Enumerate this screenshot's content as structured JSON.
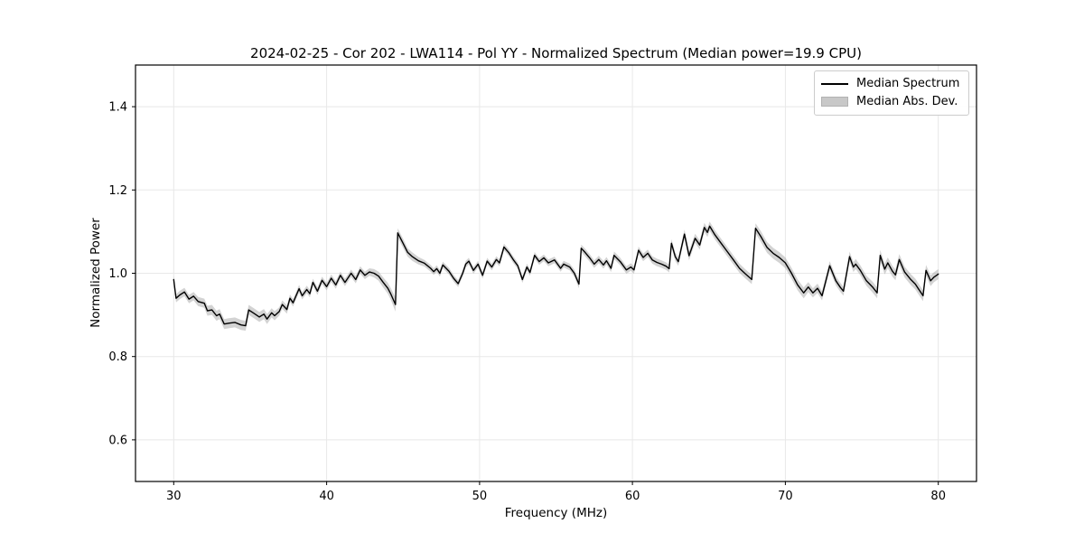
{
  "chart_data": {
    "type": "line",
    "title": "2024-02-25 - Cor 202 - LWA114 - Pol YY - Normalized Spectrum (Median power=19.9 CPU)",
    "xlabel": "Frequency (MHz)",
    "ylabel": "Normalized Power",
    "xlim": [
      27.5,
      82.5
    ],
    "ylim": [
      0.5,
      1.5
    ],
    "grid": true,
    "xticks": [
      {
        "value": 30,
        "label": "30"
      },
      {
        "value": 40,
        "label": "40"
      },
      {
        "value": 50,
        "label": "50"
      },
      {
        "value": 60,
        "label": "60"
      },
      {
        "value": 70,
        "label": "70"
      },
      {
        "value": 80,
        "label": "80"
      }
    ],
    "yticks": [
      {
        "value": 0.6,
        "label": "0.6"
      },
      {
        "value": 0.8,
        "label": "0.8"
      },
      {
        "value": 1.0,
        "label": "1.0"
      },
      {
        "value": 1.2,
        "label": "1.2"
      },
      {
        "value": 1.4,
        "label": "1.4"
      }
    ],
    "legend": {
      "position": "upper right",
      "entries": [
        "Median Spectrum",
        "Median Abs. Dev."
      ]
    },
    "colors": {
      "line": "#000000",
      "band": "#9e9e9e",
      "band_opacity": 0.45,
      "grid": "#e8e8e8",
      "frame": "#000000"
    },
    "series": [
      {
        "name": "Median Spectrum",
        "points_format": [
          "freq_mhz",
          "normalized_power",
          "median_abs_dev"
        ],
        "points": [
          [
            30.0,
            0.985,
            0.01
          ],
          [
            30.15,
            0.94,
            0.01
          ],
          [
            30.4,
            0.948,
            0.01
          ],
          [
            30.7,
            0.955,
            0.01
          ],
          [
            31.0,
            0.938,
            0.01
          ],
          [
            31.3,
            0.945,
            0.01
          ],
          [
            31.6,
            0.932,
            0.011
          ],
          [
            32.0,
            0.928,
            0.011
          ],
          [
            32.2,
            0.91,
            0.012
          ],
          [
            32.5,
            0.912,
            0.012
          ],
          [
            32.8,
            0.898,
            0.012
          ],
          [
            33.0,
            0.902,
            0.012
          ],
          [
            33.3,
            0.878,
            0.012
          ],
          [
            33.6,
            0.88,
            0.012
          ],
          [
            34.0,
            0.882,
            0.012
          ],
          [
            34.4,
            0.876,
            0.012
          ],
          [
            34.7,
            0.874,
            0.012
          ],
          [
            34.9,
            0.912,
            0.012
          ],
          [
            35.2,
            0.905,
            0.012
          ],
          [
            35.6,
            0.895,
            0.012
          ],
          [
            35.9,
            0.902,
            0.012
          ],
          [
            36.1,
            0.89,
            0.012
          ],
          [
            36.4,
            0.905,
            0.011
          ],
          [
            36.6,
            0.898,
            0.011
          ],
          [
            36.9,
            0.908,
            0.01
          ],
          [
            37.1,
            0.925,
            0.01
          ],
          [
            37.4,
            0.913,
            0.01
          ],
          [
            37.6,
            0.94,
            0.009
          ],
          [
            37.8,
            0.929,
            0.009
          ],
          [
            38.2,
            0.963,
            0.009
          ],
          [
            38.4,
            0.946,
            0.009
          ],
          [
            38.7,
            0.961,
            0.009
          ],
          [
            38.9,
            0.951,
            0.009
          ],
          [
            39.1,
            0.978,
            0.009
          ],
          [
            39.4,
            0.957,
            0.009
          ],
          [
            39.7,
            0.983,
            0.009
          ],
          [
            40.0,
            0.968,
            0.009
          ],
          [
            40.3,
            0.988,
            0.009
          ],
          [
            40.6,
            0.972,
            0.009
          ],
          [
            40.9,
            0.995,
            0.009
          ],
          [
            41.2,
            0.978,
            0.009
          ],
          [
            41.6,
            1.0,
            0.009
          ],
          [
            41.9,
            0.985,
            0.009
          ],
          [
            42.2,
            1.008,
            0.009
          ],
          [
            42.5,
            0.995,
            0.009
          ],
          [
            42.8,
            1.003,
            0.009
          ],
          [
            43.1,
            1.0,
            0.01
          ],
          [
            43.4,
            0.993,
            0.011
          ],
          [
            43.7,
            0.978,
            0.012
          ],
          [
            44.0,
            0.964,
            0.013
          ],
          [
            44.2,
            0.95,
            0.014
          ],
          [
            44.5,
            0.925,
            0.017
          ],
          [
            44.65,
            1.097,
            0.011
          ],
          [
            45.0,
            1.072,
            0.011
          ],
          [
            45.3,
            1.05,
            0.01
          ],
          [
            45.6,
            1.04,
            0.01
          ],
          [
            46.0,
            1.03,
            0.009
          ],
          [
            46.4,
            1.024,
            0.008
          ],
          [
            46.8,
            1.012,
            0.008
          ],
          [
            47.0,
            1.004,
            0.008
          ],
          [
            47.2,
            1.011,
            0.008
          ],
          [
            47.4,
            1.0,
            0.008
          ],
          [
            47.6,
            1.02,
            0.008
          ],
          [
            48.0,
            1.005,
            0.008
          ],
          [
            48.3,
            0.988,
            0.008
          ],
          [
            48.6,
            0.975,
            0.008
          ],
          [
            48.9,
            1.0,
            0.008
          ],
          [
            49.1,
            1.022,
            0.008
          ],
          [
            49.3,
            1.029,
            0.008
          ],
          [
            49.6,
            1.007,
            0.008
          ],
          [
            49.9,
            1.022,
            0.008
          ],
          [
            50.2,
            0.995,
            0.008
          ],
          [
            50.5,
            1.029,
            0.008
          ],
          [
            50.8,
            1.015,
            0.008
          ],
          [
            51.1,
            1.033,
            0.008
          ],
          [
            51.3,
            1.025,
            0.008
          ],
          [
            51.6,
            1.063,
            0.008
          ],
          [
            51.9,
            1.05,
            0.008
          ],
          [
            52.2,
            1.033,
            0.008
          ],
          [
            52.5,
            1.018,
            0.008
          ],
          [
            52.8,
            0.985,
            0.008
          ],
          [
            53.1,
            1.015,
            0.008
          ],
          [
            53.3,
            1.002,
            0.008
          ],
          [
            53.6,
            1.043,
            0.008
          ],
          [
            53.9,
            1.028,
            0.008
          ],
          [
            54.2,
            1.037,
            0.008
          ],
          [
            54.5,
            1.025,
            0.008
          ],
          [
            54.9,
            1.032,
            0.008
          ],
          [
            55.3,
            1.012,
            0.008
          ],
          [
            55.5,
            1.022,
            0.008
          ],
          [
            55.9,
            1.015,
            0.008
          ],
          [
            56.2,
            1.0,
            0.009
          ],
          [
            56.5,
            0.974,
            0.01
          ],
          [
            56.65,
            1.06,
            0.009
          ],
          [
            56.9,
            1.05,
            0.009
          ],
          [
            57.2,
            1.037,
            0.009
          ],
          [
            57.5,
            1.022,
            0.009
          ],
          [
            57.8,
            1.033,
            0.009
          ],
          [
            58.1,
            1.02,
            0.009
          ],
          [
            58.3,
            1.03,
            0.009
          ],
          [
            58.6,
            1.012,
            0.009
          ],
          [
            58.8,
            1.043,
            0.009
          ],
          [
            59.2,
            1.028,
            0.009
          ],
          [
            59.6,
            1.008,
            0.009
          ],
          [
            59.9,
            1.015,
            0.009
          ],
          [
            60.1,
            1.008,
            0.009
          ],
          [
            60.4,
            1.055,
            0.009
          ],
          [
            60.7,
            1.038,
            0.009
          ],
          [
            61.0,
            1.048,
            0.009
          ],
          [
            61.3,
            1.032,
            0.009
          ],
          [
            61.6,
            1.026,
            0.009
          ],
          [
            61.9,
            1.022,
            0.009
          ],
          [
            62.2,
            1.017,
            0.009
          ],
          [
            62.4,
            1.011,
            0.009
          ],
          [
            62.55,
            1.072,
            0.01
          ],
          [
            62.8,
            1.04,
            0.01
          ],
          [
            63.0,
            1.028,
            0.01
          ],
          [
            63.4,
            1.094,
            0.011
          ],
          [
            63.7,
            1.042,
            0.011
          ],
          [
            64.1,
            1.084,
            0.011
          ],
          [
            64.4,
            1.068,
            0.011
          ],
          [
            64.7,
            1.11,
            0.011
          ],
          [
            64.9,
            1.098,
            0.011
          ],
          [
            65.05,
            1.113,
            0.011
          ],
          [
            65.4,
            1.092,
            0.011
          ],
          [
            65.8,
            1.072,
            0.011
          ],
          [
            66.2,
            1.052,
            0.011
          ],
          [
            66.6,
            1.032,
            0.011
          ],
          [
            67.0,
            1.012,
            0.011
          ],
          [
            67.4,
            0.998,
            0.011
          ],
          [
            67.8,
            0.985,
            0.011
          ],
          [
            68.05,
            1.108,
            0.012
          ],
          [
            68.4,
            1.088,
            0.013
          ],
          [
            68.8,
            1.062,
            0.013
          ],
          [
            69.2,
            1.048,
            0.013
          ],
          [
            69.6,
            1.038,
            0.013
          ],
          [
            70.0,
            1.025,
            0.013
          ],
          [
            70.4,
            1.0,
            0.013
          ],
          [
            70.8,
            0.972,
            0.013
          ],
          [
            71.2,
            0.953,
            0.013
          ],
          [
            71.5,
            0.967,
            0.012
          ],
          [
            71.8,
            0.953,
            0.011
          ],
          [
            72.1,
            0.964,
            0.011
          ],
          [
            72.4,
            0.946,
            0.011
          ],
          [
            72.9,
            1.018,
            0.011
          ],
          [
            73.3,
            0.982,
            0.011
          ],
          [
            73.6,
            0.966,
            0.011
          ],
          [
            73.8,
            0.957,
            0.011
          ],
          [
            74.2,
            1.04,
            0.012
          ],
          [
            74.45,
            1.015,
            0.012
          ],
          [
            74.6,
            1.022,
            0.012
          ],
          [
            74.9,
            1.007,
            0.012
          ],
          [
            75.3,
            0.982,
            0.012
          ],
          [
            75.7,
            0.967,
            0.013
          ],
          [
            76.0,
            0.953,
            0.013
          ],
          [
            76.2,
            1.043,
            0.013
          ],
          [
            76.5,
            1.01,
            0.013
          ],
          [
            76.7,
            1.025,
            0.013
          ],
          [
            77.0,
            1.005,
            0.013
          ],
          [
            77.2,
            0.996,
            0.013
          ],
          [
            77.45,
            1.033,
            0.013
          ],
          [
            77.8,
            1.003,
            0.013
          ],
          [
            78.2,
            0.985,
            0.013
          ],
          [
            78.5,
            0.974,
            0.013
          ],
          [
            78.8,
            0.957,
            0.013
          ],
          [
            79.0,
            0.946,
            0.013
          ],
          [
            79.2,
            1.007,
            0.013
          ],
          [
            79.5,
            0.982,
            0.013
          ],
          [
            79.7,
            0.99,
            0.012
          ],
          [
            80.0,
            0.998,
            0.012
          ]
        ]
      }
    ]
  }
}
